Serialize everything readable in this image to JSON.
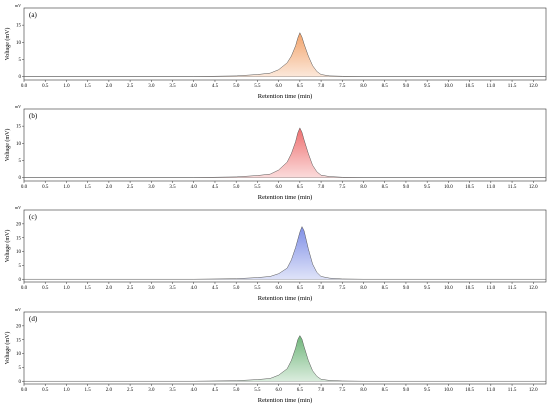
{
  "chart_data": [
    {
      "type": "area",
      "panel_label": "(a)",
      "unit": "mV",
      "ylabel": "Voltage (mV)",
      "xlabel": "Retention time (min)",
      "xlim": [
        0,
        12.3
      ],
      "ylim": [
        -1,
        20
      ],
      "x_ticks": [
        "0.0",
        "0.5",
        "1.0",
        "1.5",
        "2.0",
        "2.5",
        "3.0",
        "3.5",
        "4.0",
        "4.5",
        "5.0",
        "5.5",
        "6.0",
        "6.5",
        "7.0",
        "7.5",
        "8.0",
        "8.5",
        "9.0",
        "9.5",
        "10.0",
        "10.5",
        "11.0",
        "11.5",
        "12.0"
      ],
      "y_ticks": [
        "0",
        "5",
        "10",
        "15"
      ],
      "color": "#f2a36b",
      "peak": {
        "time": 6.5,
        "height": 12.8
      },
      "series": [
        {
          "x": [
            0,
            4.0,
            5.0,
            5.5,
            5.8,
            6.0,
            6.2,
            6.3,
            6.4,
            6.45,
            6.5,
            6.55,
            6.6,
            6.7,
            6.8,
            6.9,
            7.0,
            7.2,
            7.5,
            8.0,
            12.3
          ],
          "y": [
            0,
            0,
            0.2,
            0.6,
            1.0,
            2.0,
            4.0,
            6.0,
            9.0,
            11.2,
            12.8,
            11.5,
            9.5,
            6.0,
            3.2,
            1.5,
            0.6,
            0.2,
            0.1,
            0,
            0
          ]
        }
      ]
    },
    {
      "type": "area",
      "panel_label": "(b)",
      "unit": "mV",
      "ylabel": "Voltage (mV)",
      "xlabel": "Retention time (min)",
      "xlim": [
        0,
        12.3
      ],
      "ylim": [
        -1,
        20
      ],
      "x_ticks": [
        "0.0",
        "0.5",
        "1.0",
        "1.5",
        "2.0",
        "2.5",
        "3.0",
        "3.5",
        "4.0",
        "4.5",
        "5.0",
        "5.5",
        "6.0",
        "6.5",
        "7.0",
        "7.5",
        "8.0",
        "8.5",
        "9.0",
        "9.5",
        "10.0",
        "10.5",
        "11.0",
        "11.5",
        "12.0"
      ],
      "y_ticks": [
        "0",
        "5",
        "10",
        "15"
      ],
      "color": "#ee6f6f",
      "peak": {
        "time": 6.5,
        "height": 14.5
      },
      "series": [
        {
          "x": [
            0,
            4.0,
            5.0,
            5.5,
            5.8,
            6.0,
            6.2,
            6.3,
            6.4,
            6.45,
            6.5,
            6.55,
            6.6,
            6.7,
            6.8,
            6.9,
            7.0,
            7.2,
            7.5,
            8.0,
            12.3
          ],
          "y": [
            0,
            0,
            0.2,
            0.6,
            1.0,
            2.2,
            4.5,
            7.0,
            10.5,
            13.0,
            14.5,
            13.2,
            11.0,
            7.0,
            3.6,
            1.7,
            0.7,
            0.3,
            0.1,
            0,
            0
          ]
        }
      ]
    },
    {
      "type": "area",
      "panel_label": "(c)",
      "unit": "mV",
      "ylabel": "Voltage (mV)",
      "xlabel": "Retention time (min)",
      "xlim": [
        0,
        12.3
      ],
      "ylim": [
        -1,
        25
      ],
      "x_ticks": [
        "0.0",
        "0.5",
        "1.0",
        "1.5",
        "2.0",
        "2.5",
        "3.0",
        "3.5",
        "4.0",
        "4.5",
        "5.0",
        "5.5",
        "6.0",
        "6.5",
        "7.0",
        "7.5",
        "8.0",
        "8.5",
        "9.0",
        "9.5",
        "10.0",
        "10.5",
        "11.0",
        "11.5",
        "12.0"
      ],
      "y_ticks": [
        "0",
        "5",
        "10",
        "15",
        "20"
      ],
      "color": "#7f8fe6",
      "peak": {
        "time": 6.55,
        "height": 19
      },
      "series": [
        {
          "x": [
            0,
            4.0,
            5.0,
            5.5,
            5.8,
            6.0,
            6.2,
            6.3,
            6.4,
            6.5,
            6.55,
            6.6,
            6.7,
            6.8,
            6.9,
            7.0,
            7.2,
            7.5,
            8.0,
            12.3
          ],
          "y": [
            0,
            0,
            0.2,
            0.6,
            1.0,
            2.0,
            4.0,
            7.0,
            11.5,
            17.0,
            19.0,
            17.5,
            11.0,
            5.5,
            2.5,
            1.0,
            0.4,
            0.1,
            0,
            0
          ]
        }
      ]
    },
    {
      "type": "area",
      "panel_label": "(d)",
      "unit": "mV",
      "ylabel": "Voltage (mV)",
      "xlabel": "Retention time (min)",
      "xlim": [
        0,
        12.3
      ],
      "ylim": [
        -1,
        25
      ],
      "x_ticks": [
        "0.0",
        "0.5",
        "1.0",
        "1.5",
        "2.0",
        "2.5",
        "3.0",
        "3.5",
        "4.0",
        "4.5",
        "5.0",
        "5.5",
        "6.0",
        "6.5",
        "7.0",
        "7.5",
        "8.0",
        "8.5",
        "9.0",
        "9.5",
        "10.0",
        "10.5",
        "11.0",
        "11.5",
        "12.0"
      ],
      "y_ticks": [
        "0",
        "5",
        "10",
        "15",
        "20"
      ],
      "color": "#6fb57a",
      "peak": {
        "time": 6.5,
        "height": 16.5
      },
      "series": [
        {
          "x": [
            0,
            4.0,
            5.0,
            5.5,
            5.8,
            6.0,
            6.2,
            6.3,
            6.4,
            6.45,
            6.5,
            6.55,
            6.6,
            6.7,
            6.8,
            6.9,
            7.0,
            7.2,
            7.5,
            8.0,
            12.3
          ],
          "y": [
            0,
            0,
            0.2,
            0.6,
            1.0,
            2.2,
            4.5,
            7.5,
            12.0,
            15.0,
            16.5,
            15.2,
            12.5,
            7.5,
            3.8,
            1.8,
            0.7,
            0.3,
            0.1,
            0,
            0
          ]
        }
      ]
    }
  ]
}
